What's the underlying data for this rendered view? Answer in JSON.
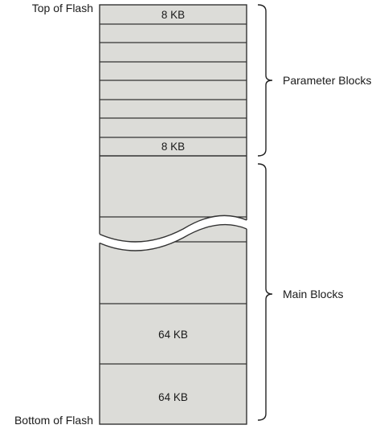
{
  "labels": {
    "top": "Top of Flash",
    "bottom": "Bottom of Flash",
    "parameter_group": "Parameter Blocks",
    "main_group": "Main Blocks"
  },
  "blocks": {
    "param_first": "8 KB",
    "param_last": "8 KB",
    "main_second_last": "64 KB",
    "main_last": "64 KB"
  },
  "colors": {
    "block_fill": "#dcdcd8",
    "outline": "#333333",
    "text": "#1a1a1a"
  }
}
